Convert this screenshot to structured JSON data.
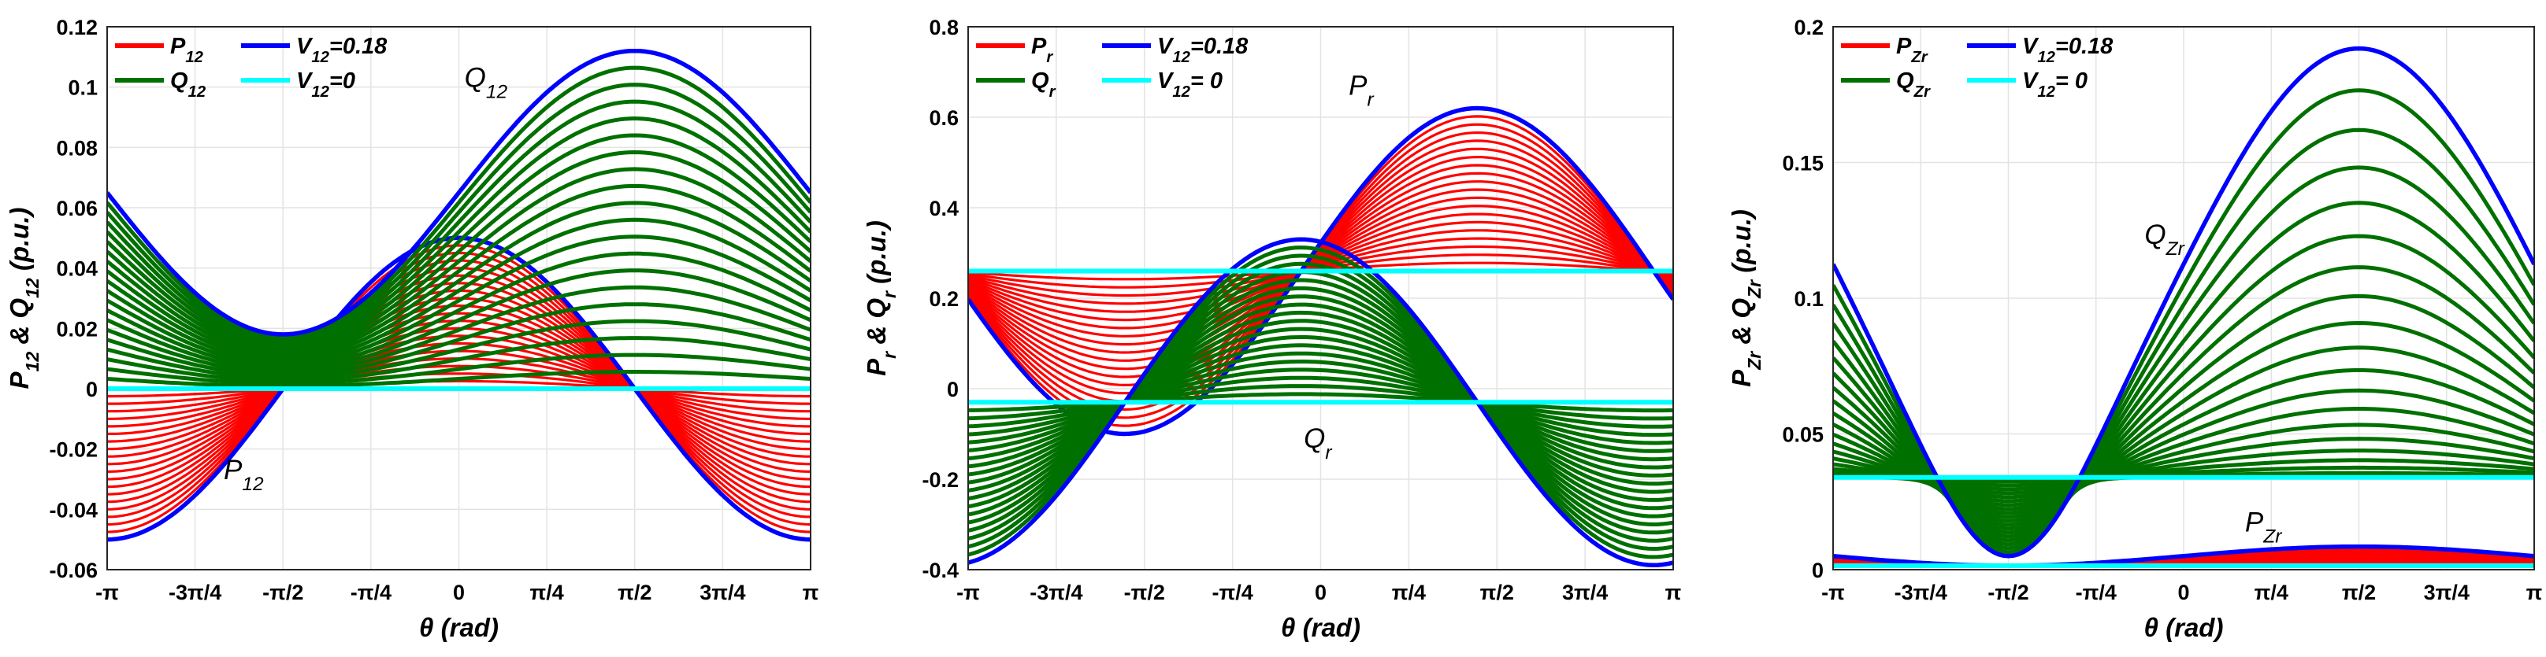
{
  "chart_data": [
    {
      "type": "line",
      "xlabel": "θ (rad)",
      "ylabel": "P12 & Q12 (p.u.)",
      "xlim": [
        -3.14159,
        3.14159
      ],
      "ylim": [
        -0.06,
        0.12
      ],
      "yticks": [
        -0.06,
        -0.04,
        -0.02,
        0,
        0.02,
        0.04,
        0.06,
        0.08,
        0.1,
        0.12
      ],
      "xticks": [
        "-π",
        "-3π/4",
        "-π/2",
        "-π/4",
        "0",
        "π/4",
        "π/2",
        "3π/4",
        "π"
      ],
      "grid": true,
      "legend": [
        {
          "label": "P12",
          "color": "#ff0000"
        },
        {
          "label": "V12=0.18",
          "color": "#0000ff"
        },
        {
          "label": "Q12",
          "color": "#007000"
        },
        {
          "label": "V12=0",
          "color": "#00ffff"
        }
      ],
      "annotations": [
        {
          "text": "Q12",
          "x": 0.05,
          "y": 0.1
        },
        {
          "text": "P12",
          "x": -2.1,
          "y": -0.03
        }
      ],
      "families": [
        {
          "name": "P12",
          "color": "#ff0000",
          "model": "sine",
          "amp_max": 0.05,
          "phase": 1.5708,
          "offset_max": 0
        },
        {
          "name": "Q12",
          "color": "#007000",
          "model": "sine",
          "amp_max": 0.047,
          "phase": 0,
          "offset_max": 0.065
        }
      ],
      "v0_level": 0.0,
      "curves_per_family": 21
    },
    {
      "type": "line",
      "xlabel": "θ (rad)",
      "ylabel": "Pr & Qr (p.u.)",
      "xlim": [
        -3.14159,
        3.14159
      ],
      "ylim": [
        -0.4,
        0.8
      ],
      "yticks": [
        -0.4,
        -0.2,
        0,
        0.2,
        0.4,
        0.6,
        0.8
      ],
      "xticks": [
        "-π",
        "-3π/4",
        "-π/2",
        "-π/4",
        "0",
        "π/4",
        "π/2",
        "3π/4",
        "π"
      ],
      "grid": true,
      "legend": [
        {
          "label": "Pr",
          "color": "#ff0000"
        },
        {
          "label": "V12=0.18",
          "color": "#0000ff"
        },
        {
          "label": "Qr",
          "color": "#007000"
        },
        {
          "label": "V12= 0",
          "color": "#00ffff"
        }
      ],
      "annotations": [
        {
          "text": "Pr",
          "x": 0.25,
          "y": 0.65
        },
        {
          "text": "Qr",
          "x": -0.15,
          "y": -0.13
        }
      ],
      "families": [
        {
          "name": "Pr",
          "color": "#ff0000",
          "model": "cos",
          "base": 0.26,
          "amp_max": 0.36,
          "phase": 1.3963
        },
        {
          "name": "Qr",
          "color": "#007000",
          "model": "cos",
          "base": -0.03,
          "amp_max": 0.36,
          "phase": -0.1745
        }
      ],
      "v0_level": [
        0.26,
        -0.03
      ],
      "curves_per_family": 21
    },
    {
      "type": "line",
      "xlabel": "θ (rad)",
      "ylabel": "PZr & QZr (p.u.)",
      "xlim": [
        -3.14159,
        3.14159
      ],
      "ylim": [
        0,
        0.2
      ],
      "yticks": [
        0,
        0.05,
        0.1,
        0.15,
        0.2
      ],
      "xticks": [
        "-π",
        "-3π/4",
        "-π/2",
        "-π/4",
        "0",
        "π/4",
        "π/2",
        "3π/4",
        "π"
      ],
      "grid": true,
      "legend": [
        {
          "label": "PZr",
          "color": "#ff0000"
        },
        {
          "label": "V12=0.18",
          "color": "#0000ff"
        },
        {
          "label": "QZr",
          "color": "#007000"
        },
        {
          "label": "V12= 0",
          "color": "#00ffff"
        }
      ],
      "annotations": [
        {
          "text": "QZr",
          "x": -0.35,
          "y": 0.12
        },
        {
          "text": "PZr",
          "x": 0.55,
          "y": 0.014
        }
      ],
      "families": [
        {
          "name": "PZr",
          "color": "#ff0000",
          "model": "cos",
          "base": 0.0015,
          "amp_max": 0.0035,
          "phase": 1.5708
        },
        {
          "name": "QZr",
          "color": "#007000",
          "model": "cos",
          "base": 0.034,
          "amp_max": 0.1,
          "phase": 1.5708,
          "quadratic": true
        }
      ],
      "v0_level": [
        0.0015,
        0.034
      ],
      "curves_per_family": 21
    }
  ]
}
